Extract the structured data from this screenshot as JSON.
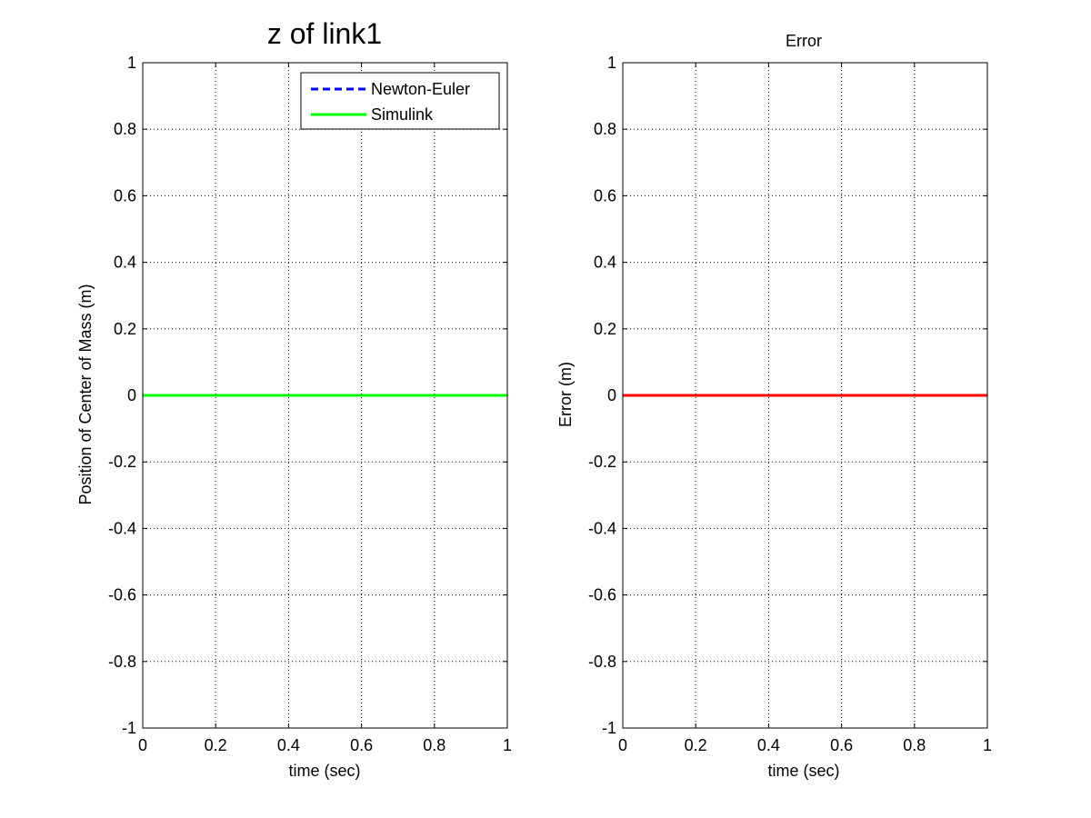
{
  "figure": {
    "background": "#ffffff"
  },
  "chart_data": [
    {
      "type": "line",
      "title": "z of link1",
      "xlabel": "time (sec)",
      "ylabel": "Position of Center of Mass (m)",
      "xlim": [
        0,
        1
      ],
      "ylim": [
        -1,
        1
      ],
      "xticks": [
        "0",
        "0.2",
        "0.4",
        "0.6",
        "0.8",
        "1"
      ],
      "yticks": [
        "1",
        "0.8",
        "0.6",
        "0.4",
        "0.2",
        "0",
        "-0.2",
        "-0.4",
        "-0.6",
        "-0.8",
        "-1"
      ],
      "grid": true,
      "legend": {
        "position": "top-right",
        "entries": [
          "Newton-Euler",
          "Simulink"
        ]
      },
      "series": [
        {
          "name": "Newton-Euler",
          "color": "#0000ff",
          "style": "dashed",
          "x": [
            0,
            1
          ],
          "y": [
            0,
            0
          ]
        },
        {
          "name": "Simulink",
          "color": "#00ff00",
          "style": "solid",
          "x": [
            0,
            1
          ],
          "y": [
            0,
            0
          ]
        }
      ]
    },
    {
      "type": "line",
      "title": "Error",
      "xlabel": "time (sec)",
      "ylabel": "Error (m)",
      "xlim": [
        0,
        1
      ],
      "ylim": [
        -1,
        1
      ],
      "xticks": [
        "0",
        "0.2",
        "0.4",
        "0.6",
        "0.8",
        "1"
      ],
      "yticks": [
        "1",
        "0.8",
        "0.6",
        "0.4",
        "0.2",
        "0",
        "-0.2",
        "-0.4",
        "-0.6",
        "-0.8",
        "-1"
      ],
      "grid": true,
      "series": [
        {
          "color": "#ff0000",
          "style": "solid",
          "x": [
            0,
            1
          ],
          "y": [
            0,
            0
          ]
        }
      ]
    }
  ]
}
